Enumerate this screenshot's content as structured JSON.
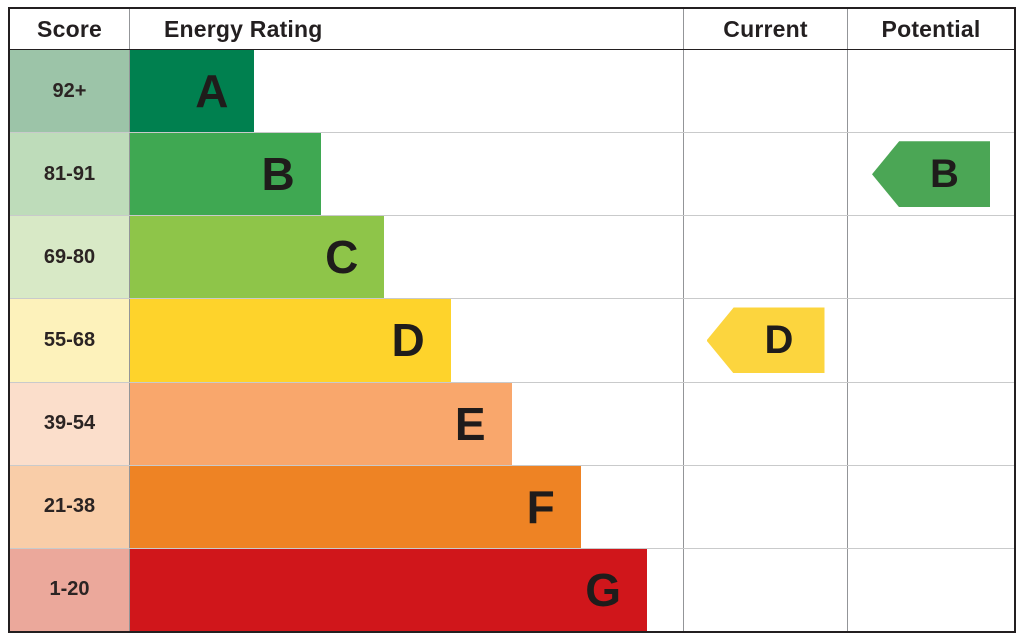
{
  "header": {
    "score": "Score",
    "energy_rating": "Energy Rating",
    "current": "Current",
    "potential": "Potential"
  },
  "chart_data": {
    "type": "bar",
    "subtype": "epc-energy-rating",
    "title": "",
    "legend": "none",
    "bands": [
      {
        "score": "92+",
        "letter": "A",
        "color": "#00804f",
        "tint": "#9cc4a8",
        "width_pct": 22.5
      },
      {
        "score": "81-91",
        "letter": "B",
        "color": "#3fa852",
        "tint": "#bedcba",
        "width_pct": 34.5
      },
      {
        "score": "69-80",
        "letter": "C",
        "color": "#8ec549",
        "tint": "#d8e9c6",
        "width_pct": 46
      },
      {
        "score": "55-68",
        "letter": "D",
        "color": "#fed32b",
        "tint": "#fdf2bb",
        "width_pct": 58
      },
      {
        "score": "39-54",
        "letter": "E",
        "color": "#f9a76c",
        "tint": "#fbdecb",
        "width_pct": 69
      },
      {
        "score": "21-38",
        "letter": "F",
        "color": "#ee8324",
        "tint": "#f9cda8",
        "width_pct": 81.5
      },
      {
        "score": "1-20",
        "letter": "G",
        "color": "#d0161b",
        "tint": "#eba89b",
        "width_pct": 93.5
      }
    ],
    "current": {
      "letter": "D",
      "band_index": 3,
      "color": "#fcd53e"
    },
    "potential": {
      "letter": "B",
      "band_index": 1,
      "color": "#4ba655"
    }
  }
}
